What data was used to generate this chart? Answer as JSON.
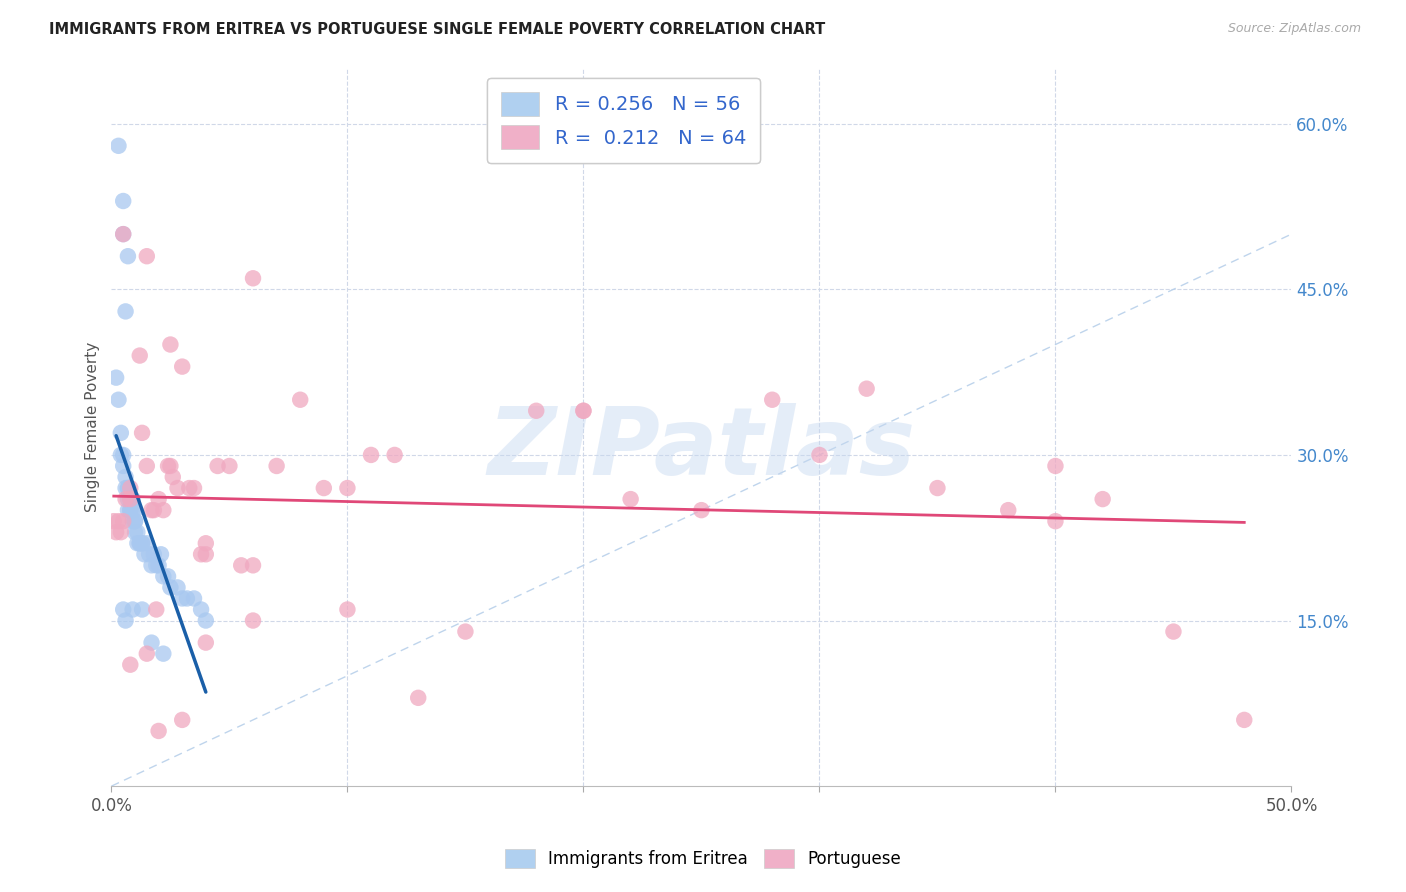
{
  "title": "IMMIGRANTS FROM ERITREA VS PORTUGUESE SINGLE FEMALE POVERTY CORRELATION CHART",
  "source": "Source: ZipAtlas.com",
  "ylabel": "Single Female Poverty",
  "xmin": 0.0,
  "xmax": 0.5,
  "ymin": 0.0,
  "ymax": 0.65,
  "xtick_vals": [
    0.0,
    0.1,
    0.2,
    0.3,
    0.4,
    0.5
  ],
  "xtick_labels_sparse": [
    "0.0%",
    "",
    "",
    "",
    "",
    "50.0%"
  ],
  "ytick_vals": [
    0.15,
    0.3,
    0.45,
    0.6
  ],
  "ytick_labels": [
    "15.0%",
    "30.0%",
    "45.0%",
    "60.0%"
  ],
  "scatter_color_blue": "#a8c8f0",
  "scatter_color_pink": "#f0a8c0",
  "trendline_color_blue": "#1a5fa8",
  "trendline_color_pink": "#e04878",
  "diagonal_color": "#b8d0ea",
  "watermark": "ZIPatlas",
  "legend_label1": "R = 0.256   N = 56",
  "legend_label2": "R =  0.212   N = 64",
  "legend_color1": "#b0d0f0",
  "legend_color2": "#f0b0c8",
  "bottom_legend1": "Immigrants from Eritrea",
  "bottom_legend2": "Portuguese",
  "blue_x": [
    0.003,
    0.005,
    0.005,
    0.007,
    0.006,
    0.002,
    0.003,
    0.004,
    0.004,
    0.005,
    0.005,
    0.006,
    0.006,
    0.007,
    0.007,
    0.007,
    0.007,
    0.008,
    0.008,
    0.008,
    0.009,
    0.009,
    0.009,
    0.01,
    0.01,
    0.01,
    0.01,
    0.011,
    0.011,
    0.012,
    0.012,
    0.013,
    0.013,
    0.014,
    0.015,
    0.016,
    0.017,
    0.018,
    0.019,
    0.02,
    0.021,
    0.022,
    0.024,
    0.025,
    0.028,
    0.03,
    0.032,
    0.035,
    0.038,
    0.04,
    0.005,
    0.006,
    0.009,
    0.013,
    0.017,
    0.022
  ],
  "blue_y": [
    0.58,
    0.53,
    0.5,
    0.48,
    0.43,
    0.37,
    0.35,
    0.32,
    0.3,
    0.3,
    0.29,
    0.28,
    0.27,
    0.27,
    0.27,
    0.26,
    0.25,
    0.26,
    0.25,
    0.25,
    0.26,
    0.25,
    0.24,
    0.25,
    0.24,
    0.24,
    0.23,
    0.23,
    0.22,
    0.22,
    0.22,
    0.22,
    0.22,
    0.21,
    0.22,
    0.21,
    0.2,
    0.21,
    0.2,
    0.2,
    0.21,
    0.19,
    0.19,
    0.18,
    0.18,
    0.17,
    0.17,
    0.17,
    0.16,
    0.15,
    0.16,
    0.15,
    0.16,
    0.16,
    0.13,
    0.12
  ],
  "pink_x": [
    0.005,
    0.015,
    0.025,
    0.001,
    0.002,
    0.003,
    0.004,
    0.005,
    0.006,
    0.008,
    0.008,
    0.012,
    0.013,
    0.015,
    0.017,
    0.018,
    0.019,
    0.02,
    0.022,
    0.024,
    0.025,
    0.026,
    0.028,
    0.03,
    0.033,
    0.035,
    0.038,
    0.04,
    0.045,
    0.05,
    0.055,
    0.06,
    0.07,
    0.08,
    0.09,
    0.1,
    0.11,
    0.12,
    0.13,
    0.15,
    0.18,
    0.2,
    0.22,
    0.25,
    0.28,
    0.3,
    0.32,
    0.35,
    0.38,
    0.4,
    0.42,
    0.45,
    0.48,
    0.04,
    0.06,
    0.008,
    0.015,
    0.02,
    0.03,
    0.04,
    0.06,
    0.1,
    0.2,
    0.4
  ],
  "pink_y": [
    0.5,
    0.48,
    0.4,
    0.24,
    0.23,
    0.24,
    0.23,
    0.24,
    0.26,
    0.27,
    0.26,
    0.39,
    0.32,
    0.29,
    0.25,
    0.25,
    0.16,
    0.26,
    0.25,
    0.29,
    0.29,
    0.28,
    0.27,
    0.38,
    0.27,
    0.27,
    0.21,
    0.21,
    0.29,
    0.29,
    0.2,
    0.2,
    0.29,
    0.35,
    0.27,
    0.27,
    0.3,
    0.3,
    0.08,
    0.14,
    0.34,
    0.34,
    0.26,
    0.25,
    0.35,
    0.3,
    0.36,
    0.27,
    0.25,
    0.24,
    0.26,
    0.14,
    0.06,
    0.22,
    0.46,
    0.11,
    0.12,
    0.05,
    0.06,
    0.13,
    0.15,
    0.16,
    0.34,
    0.29
  ]
}
